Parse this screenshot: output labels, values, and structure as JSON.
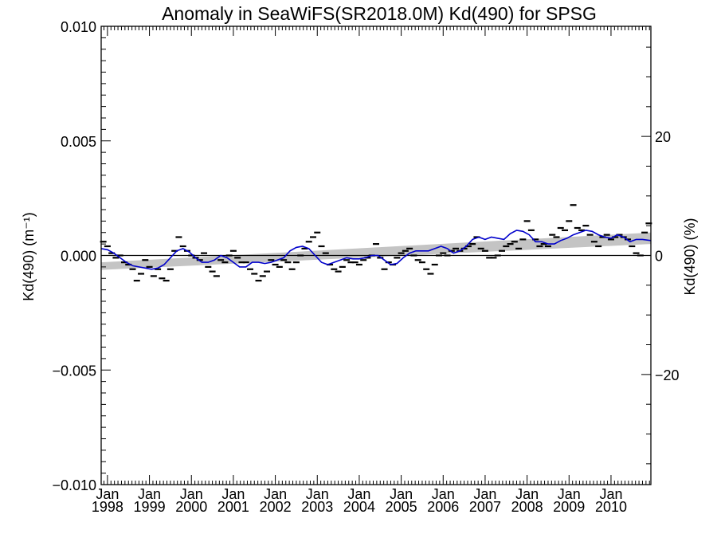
{
  "chart_data": {
    "type": "line",
    "title": "Anomaly in SeaWiFS(SR2018.0M) Kd(490) for SPSG",
    "ylabel_left": "Kd(490) (m⁻¹)",
    "ylabel_right": "Kd(490) (%)",
    "ylim": [
      -0.01,
      0.01
    ],
    "yticks_left": [
      "0.010",
      "0.005",
      "0.000",
      "−0.005",
      "−0.010"
    ],
    "yticks_left_values": [
      0.01,
      0.005,
      0.0,
      -0.005,
      -0.01
    ],
    "ylim_right_pct": [
      -38.5,
      38.5
    ],
    "yticks_right": [
      "20",
      "0",
      "−20"
    ],
    "yticks_right_values": [
      20,
      0,
      -20
    ],
    "xlim_year": [
      1997.85,
      2010.95
    ],
    "xticks": [
      {
        "year": 1998,
        "month": "Jan",
        "label": "1998"
      },
      {
        "year": 1999,
        "month": "Jan",
        "label": "1999"
      },
      {
        "year": 2000,
        "month": "Jan",
        "label": "2000"
      },
      {
        "year": 2001,
        "month": "Jan",
        "label": "2001"
      },
      {
        "year": 2002,
        "month": "Jan",
        "label": "2002"
      },
      {
        "year": 2003,
        "month": "Jan",
        "label": "2003"
      },
      {
        "year": 2004,
        "month": "Jan",
        "label": "2004"
      },
      {
        "year": 2005,
        "month": "Jan",
        "label": "2005"
      },
      {
        "year": 2006,
        "month": "Jan",
        "label": "2006"
      },
      {
        "year": 2007,
        "month": "Jan",
        "label": "2007"
      },
      {
        "year": 2008,
        "month": "Jan",
        "label": "2008"
      },
      {
        "year": 2009,
        "month": "Jan",
        "label": "2009"
      },
      {
        "year": 2010,
        "month": "Jan",
        "label": "2010"
      }
    ],
    "trend_band": {
      "start": [
        1997.85,
        -0.00063,
        -0.0003
      ],
      "end": [
        2010.95,
        0.0005,
        0.001
      ]
    },
    "zero_line": 0,
    "series": [
      {
        "kind": "monthly-anomaly-markers",
        "color": "#000000",
        "x": [
          1997.9,
          1998.0,
          1998.1,
          1998.2,
          1998.3,
          1998.4,
          1998.5,
          1998.6,
          1998.7,
          1998.8,
          1998.9,
          1999.0,
          1999.1,
          1999.2,
          1999.3,
          1999.4,
          1999.5,
          1999.6,
          1999.7,
          1999.8,
          1999.9,
          2000.0,
          2000.1,
          2000.2,
          2000.3,
          2000.4,
          2000.5,
          2000.6,
          2000.7,
          2000.8,
          2000.9,
          2001.0,
          2001.1,
          2001.2,
          2001.3,
          2001.4,
          2001.5,
          2001.6,
          2001.7,
          2001.8,
          2001.9,
          2002.0,
          2002.1,
          2002.2,
          2002.3,
          2002.4,
          2002.5,
          2002.6,
          2002.7,
          2002.8,
          2002.9,
          2003.0,
          2003.1,
          2003.2,
          2003.3,
          2003.4,
          2003.5,
          2003.6,
          2003.7,
          2003.8,
          2003.9,
          2004.0,
          2004.1,
          2004.2,
          2004.3,
          2004.4,
          2004.5,
          2004.6,
          2004.7,
          2004.8,
          2004.9,
          2005.0,
          2005.1,
          2005.2,
          2005.3,
          2005.4,
          2005.5,
          2005.6,
          2005.7,
          2005.8,
          2005.9,
          2006.0,
          2006.1,
          2006.2,
          2006.3,
          2006.4,
          2006.5,
          2006.6,
          2006.7,
          2006.8,
          2006.9,
          2007.0,
          2007.1,
          2007.2,
          2007.3,
          2007.4,
          2007.5,
          2007.6,
          2007.7,
          2007.8,
          2007.9,
          2008.0,
          2008.1,
          2008.2,
          2008.3,
          2008.4,
          2008.5,
          2008.6,
          2008.7,
          2008.8,
          2008.9,
          2009.0,
          2009.1,
          2009.2,
          2009.3,
          2009.4,
          2009.5,
          2009.6,
          2009.7,
          2009.8,
          2009.9,
          2010.0,
          2010.1,
          2010.2,
          2010.3,
          2010.4,
          2010.5,
          2010.6,
          2010.7,
          2010.8,
          2010.9
        ],
        "values": [
          0.0006,
          0.0004,
          0.0001,
          -0.0001,
          0.0,
          -0.0003,
          -0.0004,
          -0.0006,
          -0.0011,
          -0.0008,
          -0.0002,
          -0.0005,
          -0.0009,
          -0.0006,
          -0.001,
          -0.0011,
          -0.0006,
          0.0002,
          0.0008,
          0.0004,
          0.0002,
          0.0,
          -0.0001,
          -0.0002,
          0.0001,
          -0.0005,
          -0.0007,
          -0.0009,
          -0.0002,
          -0.0003,
          0.0,
          0.0002,
          -0.0001,
          -0.0003,
          -0.0003,
          -0.0006,
          -0.0008,
          -0.0011,
          -0.0009,
          -0.0007,
          -0.0002,
          -0.0004,
          -0.0005,
          -0.0002,
          -0.0003,
          -0.0006,
          -0.0003,
          0.0,
          0.0003,
          0.0006,
          0.0008,
          0.001,
          0.0004,
          0.0001,
          -0.0004,
          -0.0006,
          -0.0007,
          -0.0005,
          -0.0002,
          -0.0003,
          -0.0003,
          -0.0004,
          -0.0002,
          -0.0001,
          0.0,
          0.0005,
          -0.0001,
          -0.0006,
          -0.0003,
          -0.0004,
          -0.0001,
          0.0001,
          0.0002,
          0.0003,
          0.0,
          -0.0002,
          -0.0003,
          -0.0006,
          -0.0008,
          -0.0004,
          0.0,
          0.0001,
          0.0,
          0.0002,
          0.0003,
          0.0002,
          0.0003,
          0.0004,
          0.0005,
          0.0008,
          0.0003,
          0.0002,
          -0.0001,
          -0.0001,
          0.0,
          0.0002,
          0.0004,
          0.0005,
          0.0006,
          0.0003,
          0.0007,
          0.0015,
          0.0011,
          0.0007,
          0.0004,
          0.0005,
          0.0004,
          0.0009,
          0.0008,
          0.0012,
          0.0011,
          0.0015,
          0.0022,
          0.0012,
          0.0011,
          0.0013,
          0.0009,
          0.0006,
          0.0004,
          0.0008,
          0.0009,
          0.0007,
          0.0008,
          0.0009,
          0.0008,
          0.0007,
          0.0004,
          0.0001,
          0.0,
          0.001,
          0.0014
        ]
      },
      {
        "kind": "smoothed",
        "color": "#0000cc",
        "x": [
          1997.85,
          1998.0,
          1998.15,
          1998.3,
          1998.45,
          1998.6,
          1998.75,
          1998.9,
          1999.05,
          1999.2,
          1999.35,
          1999.5,
          1999.65,
          1999.8,
          1999.95,
          2000.1,
          2000.25,
          2000.4,
          2000.55,
          2000.7,
          2000.85,
          2001.0,
          2001.15,
          2001.3,
          2001.45,
          2001.6,
          2001.75,
          2001.9,
          2002.05,
          2002.2,
          2002.35,
          2002.5,
          2002.65,
          2002.8,
          2002.95,
          2003.1,
          2003.25,
          2003.4,
          2003.55,
          2003.7,
          2003.85,
          2004.0,
          2004.15,
          2004.3,
          2004.45,
          2004.6,
          2004.75,
          2004.9,
          2005.05,
          2005.2,
          2005.35,
          2005.5,
          2005.65,
          2005.8,
          2005.95,
          2006.1,
          2006.25,
          2006.4,
          2006.55,
          2006.7,
          2006.85,
          2007.0,
          2007.15,
          2007.3,
          2007.45,
          2007.6,
          2007.75,
          2007.9,
          2008.05,
          2008.2,
          2008.35,
          2008.5,
          2008.65,
          2008.8,
          2008.95,
          2009.1,
          2009.25,
          2009.4,
          2009.55,
          2009.7,
          2009.85,
          2010.0,
          2010.15,
          2010.3,
          2010.45,
          2010.6,
          2010.75,
          2010.95
        ],
        "values": [
          0.0003,
          0.00025,
          0.0001,
          -0.0001,
          -0.0003,
          -0.00045,
          -0.0005,
          -0.00055,
          -0.0006,
          -0.00055,
          -0.0004,
          -0.0001,
          0.0002,
          0.0003,
          0.00015,
          -0.0001,
          -0.0003,
          -0.0003,
          -0.0002,
          0.0,
          -0.0001,
          -0.0003,
          -0.0005,
          -0.0005,
          -0.0003,
          -0.0003,
          -0.00035,
          -0.0003,
          -0.0002,
          -0.0001,
          0.0002,
          0.00035,
          0.0004,
          0.0003,
          0.0,
          -0.0003,
          -0.0004,
          -0.0003,
          -0.0002,
          -0.0001,
          -0.00015,
          -0.00015,
          -0.0001,
          0.0,
          0.0,
          -0.0002,
          -0.0004,
          -0.00035,
          -0.0001,
          0.0001,
          0.0002,
          0.0002,
          0.0002,
          0.0003,
          0.0004,
          0.0003,
          0.0001,
          0.0002,
          0.0004,
          0.0007,
          0.0008,
          0.0007,
          0.0008,
          0.00075,
          0.0007,
          0.00095,
          0.0011,
          0.00105,
          0.0009,
          0.0006,
          0.0006,
          0.0005,
          0.0005,
          0.00065,
          0.00075,
          0.0009,
          0.001,
          0.0011,
          0.00105,
          0.0009,
          0.0008,
          0.00075,
          0.0009,
          0.0008,
          0.0006,
          0.0007,
          0.0007,
          0.00065
        ]
      }
    ],
    "grid": false,
    "legend": "none"
  }
}
